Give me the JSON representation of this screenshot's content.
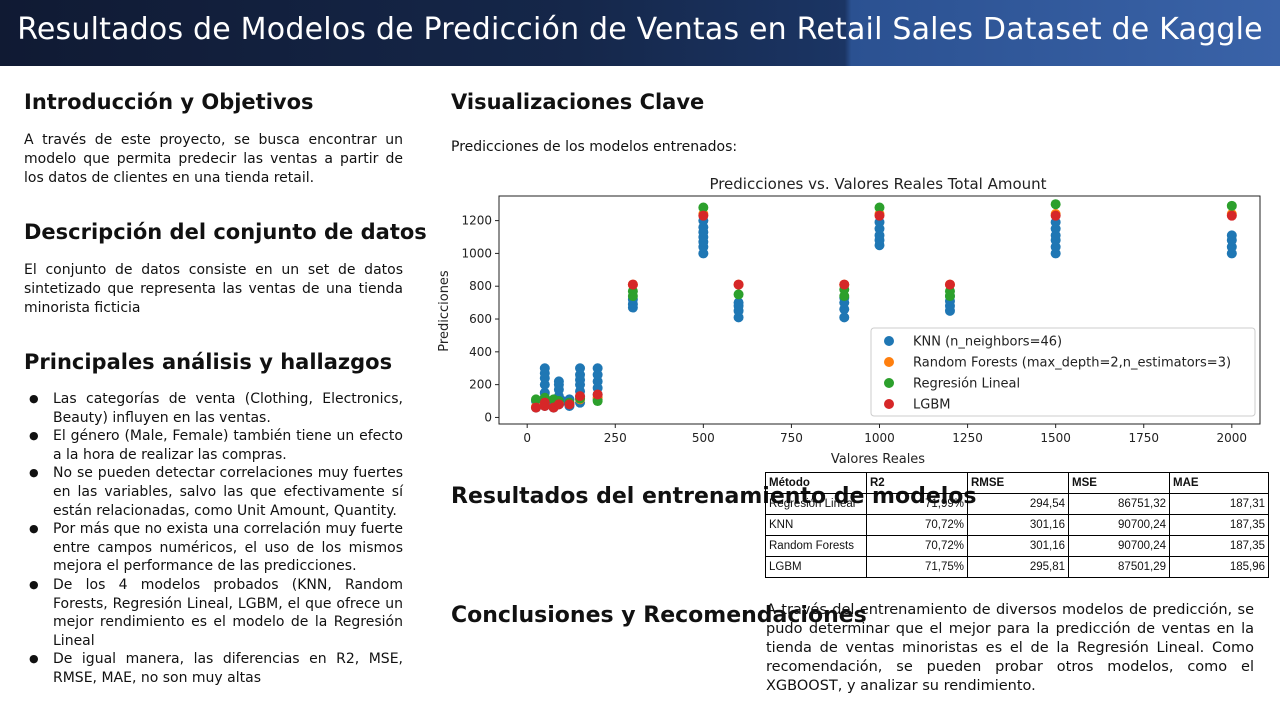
{
  "title": "Resultados de Modelos de Predicción de Ventas en Retail Sales Dataset de Kaggle",
  "intro": {
    "heading": "Introducción y Objetivos",
    "text": "A través de este proyecto, se busca encontrar un modelo que permita predecir las ventas a partir de los datos de clientes en una tienda retail."
  },
  "dataset": {
    "heading": "Descripción del conjunto de datos",
    "text": "El conjunto de datos consiste en un set de datos sintetizado que representa las ventas de una tienda minorista ficticia"
  },
  "findings": {
    "heading": "Principales análisis y hallazgos",
    "items": [
      "Las categorías de venta (Clothing, Electronics, Beauty) influyen en las ventas.",
      "El género (Male, Female) también tiene un efecto a la hora de realizar las compras.",
      "No se pueden detectar correlaciones muy fuertes en las variables, salvo las que efectivamente sí están relacionadas, como Unit Amount, Quantity.",
      "Por más que no exista una correlación muy fuerte entre campos numéricos, el uso de los mismos mejora el performance de las predicciones.",
      "De los 4 modelos probados (KNN, Random Forests, Regresión Lineal, LGBM, el que ofrece un mejor rendimiento es el modelo de la Regresión Lineal",
      "De igual manera, las diferencias en R2, MSE, RMSE, MAE, no son muy altas"
    ]
  },
  "viz": {
    "heading": "Visualizaciones Clave",
    "subtitle": "Predicciones de los modelos entrenados:"
  },
  "chart_data": {
    "type": "scatter",
    "title": "Predicciones vs. Valores Reales Total Amount",
    "xlabel": "Valores Reales",
    "ylabel": "Predicciones",
    "xlim": [
      -80,
      2080
    ],
    "ylim": [
      -40,
      1350
    ],
    "xticks": [
      0,
      250,
      500,
      750,
      1000,
      1250,
      1500,
      1750,
      2000
    ],
    "yticks": [
      0,
      200,
      400,
      600,
      800,
      1000,
      1200
    ],
    "legend_position": "lower-right",
    "series": [
      {
        "name": "KNN (n_neighbors=46)",
        "color": "#1f77b4",
        "points": [
          [
            25,
            60
          ],
          [
            25,
            100
          ],
          [
            30,
            80
          ],
          [
            50,
            70
          ],
          [
            50,
            120
          ],
          [
            50,
            150
          ],
          [
            50,
            200
          ],
          [
            50,
            240
          ],
          [
            50,
            270
          ],
          [
            50,
            300
          ],
          [
            60,
            90
          ],
          [
            75,
            60
          ],
          [
            90,
            80
          ],
          [
            90,
            130
          ],
          [
            90,
            170
          ],
          [
            90,
            200
          ],
          [
            90,
            220
          ],
          [
            100,
            100
          ],
          [
            120,
            70
          ],
          [
            120,
            110
          ],
          [
            150,
            90
          ],
          [
            150,
            130
          ],
          [
            150,
            160
          ],
          [
            150,
            200
          ],
          [
            150,
            230
          ],
          [
            150,
            260
          ],
          [
            150,
            300
          ],
          [
            200,
            110
          ],
          [
            200,
            140
          ],
          [
            200,
            180
          ],
          [
            200,
            220
          ],
          [
            200,
            260
          ],
          [
            200,
            300
          ],
          [
            300,
            670
          ],
          [
            300,
            690
          ],
          [
            300,
            720
          ],
          [
            500,
            1000
          ],
          [
            500,
            1040
          ],
          [
            500,
            1070
          ],
          [
            500,
            1100
          ],
          [
            500,
            1130
          ],
          [
            500,
            1160
          ],
          [
            500,
            1200
          ],
          [
            600,
            610
          ],
          [
            600,
            650
          ],
          [
            600,
            680
          ],
          [
            600,
            700
          ],
          [
            900,
            610
          ],
          [
            900,
            660
          ],
          [
            900,
            700
          ],
          [
            900,
            730
          ],
          [
            1000,
            1050
          ],
          [
            1000,
            1080
          ],
          [
            1000,
            1110
          ],
          [
            1000,
            1150
          ],
          [
            1000,
            1190
          ],
          [
            1200,
            650
          ],
          [
            1200,
            680
          ],
          [
            1200,
            710
          ],
          [
            1200,
            740
          ],
          [
            1500,
            1000
          ],
          [
            1500,
            1040
          ],
          [
            1500,
            1080
          ],
          [
            1500,
            1110
          ],
          [
            1500,
            1150
          ],
          [
            1500,
            1190
          ],
          [
            2000,
            1000
          ],
          [
            2000,
            1040
          ],
          [
            2000,
            1080
          ],
          [
            2000,
            1110
          ]
        ]
      },
      {
        "name": "Random Forests (max_depth=2,n_estimators=3)",
        "color": "#ff7f0e",
        "points": [
          [
            25,
            65
          ],
          [
            50,
            75
          ],
          [
            90,
            90
          ],
          [
            150,
            110
          ],
          [
            200,
            120
          ],
          [
            300,
            810
          ],
          [
            500,
            1240
          ],
          [
            600,
            810
          ],
          [
            900,
            810
          ],
          [
            1000,
            1240
          ],
          [
            1200,
            810
          ],
          [
            1500,
            1240
          ],
          [
            2000,
            1240
          ]
        ]
      },
      {
        "name": "Regresión Lineal",
        "color": "#2ca02c",
        "points": [
          [
            25,
            110
          ],
          [
            50,
            120
          ],
          [
            75,
            110
          ],
          [
            90,
            100
          ],
          [
            120,
            90
          ],
          [
            150,
            115
          ],
          [
            200,
            100
          ],
          [
            300,
            740
          ],
          [
            300,
            770
          ],
          [
            500,
            1280
          ],
          [
            600,
            750
          ],
          [
            900,
            740
          ],
          [
            900,
            780
          ],
          [
            1000,
            1280
          ],
          [
            1200,
            740
          ],
          [
            1200,
            770
          ],
          [
            1500,
            1300
          ],
          [
            2000,
            1290
          ]
        ]
      },
      {
        "name": "LGBM",
        "color": "#d62728",
        "points": [
          [
            25,
            60
          ],
          [
            50,
            70
          ],
          [
            50,
            90
          ],
          [
            75,
            60
          ],
          [
            90,
            80
          ],
          [
            120,
            80
          ],
          [
            150,
            130
          ],
          [
            200,
            140
          ],
          [
            300,
            810
          ],
          [
            500,
            1230
          ],
          [
            600,
            810
          ],
          [
            900,
            810
          ],
          [
            1000,
            1230
          ],
          [
            1200,
            810
          ],
          [
            1500,
            1230
          ],
          [
            2000,
            1230
          ]
        ]
      }
    ]
  },
  "results": {
    "heading": "Resultados del entrenamiento de modelos",
    "columns": [
      "Método",
      "R2",
      "RMSE",
      "MSE",
      "MAE"
    ],
    "rows": [
      [
        "Regresión Lineal",
        "71,99%",
        "294,54",
        "86751,32",
        "187,31"
      ],
      [
        "KNN",
        "70,72%",
        "301,16",
        "90700,24",
        "187,35"
      ],
      [
        "Random Forests",
        "70,72%",
        "301,16",
        "90700,24",
        "187,35"
      ],
      [
        "LGBM",
        "71,75%",
        "295,81",
        "87501,29",
        "185,96"
      ]
    ]
  },
  "conclusions": {
    "heading": "Conclusiones y Recomendaciones",
    "text": "A través del entrenamiento de diversos modelos de predicción, se pudo determinar que el mejor para la predicción de ventas en la tienda de ventas minoristas es el de la Regresión Lineal. Como recomendación, se pueden probar otros modelos, como el XGBOOST, y analizar su rendimiento."
  }
}
